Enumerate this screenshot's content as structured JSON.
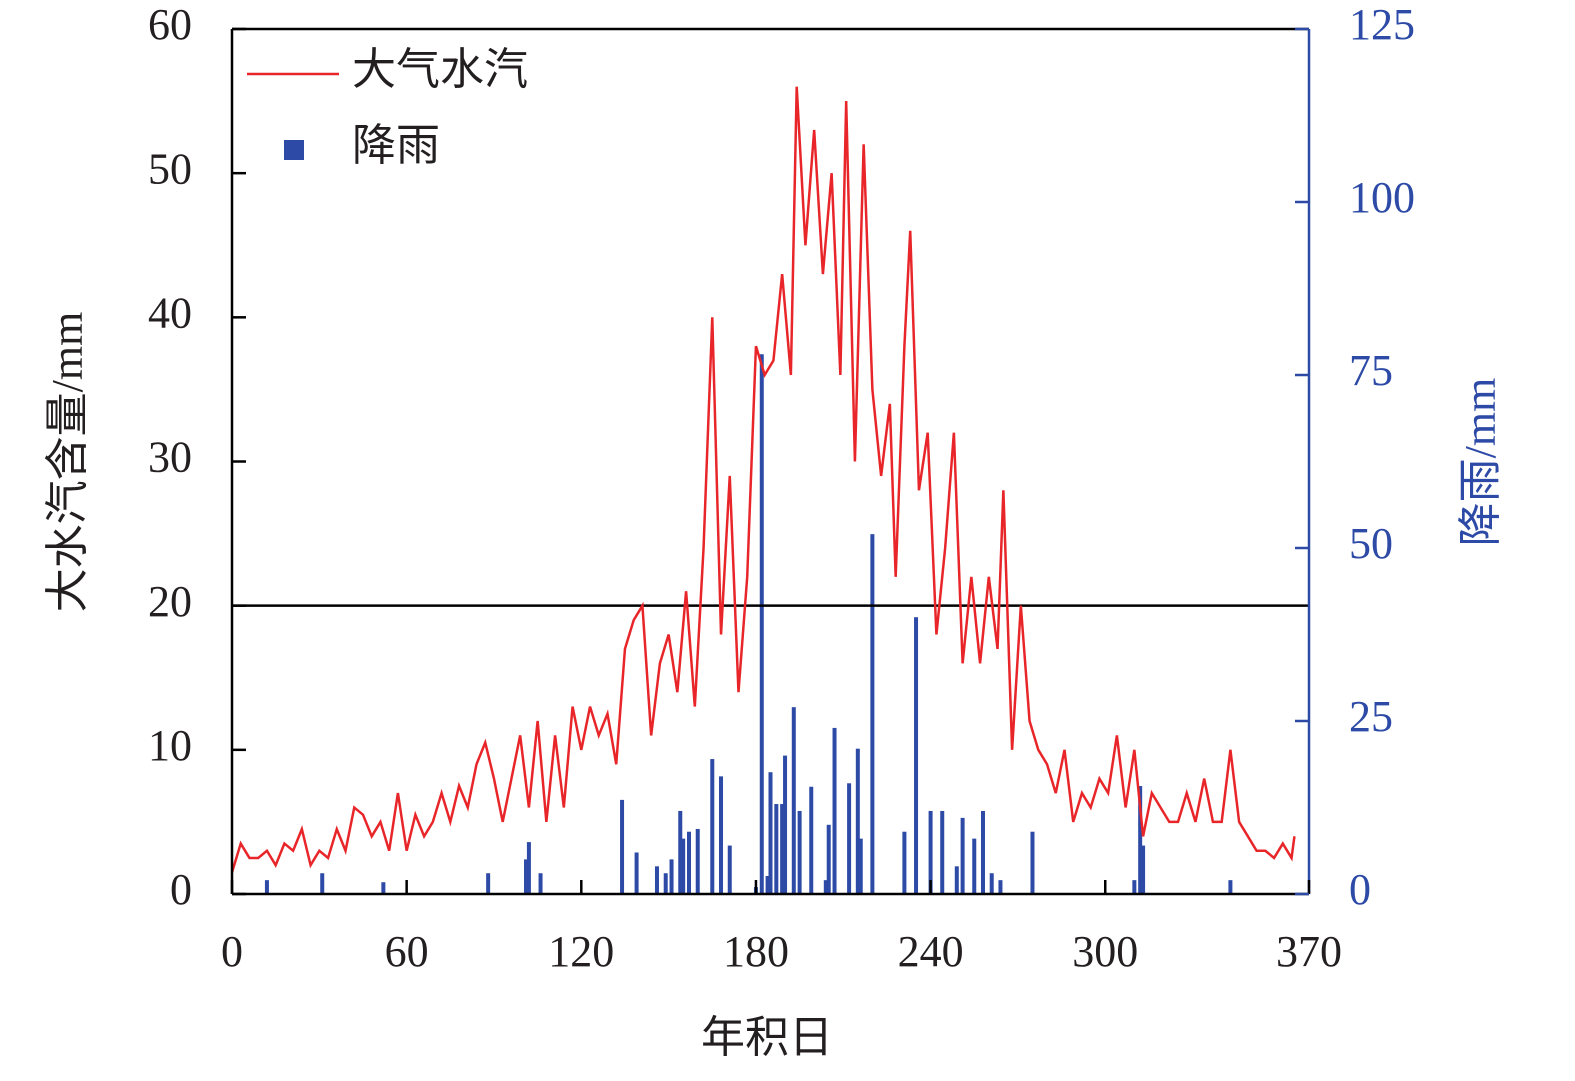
{
  "chart_data": {
    "type": "line_bar",
    "xlabel": "年积日",
    "ylabel": "大水汽含量/mm",
    "y2label": "降雨/mm",
    "xlim": [
      0,
      370
    ],
    "xticks": [
      0,
      60,
      120,
      180,
      240,
      300,
      370
    ],
    "ylim": [
      0,
      60
    ],
    "yticks": [
      0,
      10,
      20,
      30,
      40,
      50,
      60
    ],
    "y2lim": [
      0,
      125
    ],
    "y2ticks": [
      0,
      25,
      50,
      75,
      100,
      125
    ],
    "hline": 20,
    "legend": "upper left",
    "series": [
      {
        "name": "大气水汽",
        "type": "line",
        "color": "#e8262a",
        "x": [
          0,
          3,
          6,
          9,
          12,
          15,
          18,
          21,
          24,
          27,
          30,
          33,
          36,
          39,
          42,
          45,
          48,
          51,
          54,
          57,
          60,
          63,
          66,
          69,
          72,
          75,
          78,
          81,
          84,
          87,
          90,
          93,
          96,
          99,
          102,
          105,
          108,
          111,
          114,
          117,
          120,
          123,
          126,
          129,
          132,
          135,
          138,
          141,
          144,
          147,
          150,
          153,
          156,
          159,
          162,
          165,
          168,
          171,
          174,
          177,
          180,
          183,
          186,
          189,
          192,
          194,
          197,
          200,
          203,
          206,
          209,
          211,
          214,
          217,
          220,
          223,
          226,
          228,
          231,
          233,
          236,
          239,
          242,
          245,
          248,
          251,
          254,
          257,
          260,
          263,
          265,
          268,
          271,
          274,
          277,
          280,
          283,
          286,
          289,
          292,
          295,
          298,
          301,
          304,
          307,
          310,
          313,
          316,
          319,
          322,
          325,
          328,
          331,
          334,
          337,
          340,
          343,
          346,
          349,
          352,
          355,
          358,
          361,
          364,
          365
        ],
        "values": [
          1.5,
          3.5,
          2.5,
          2.5,
          3,
          2,
          3.5,
          3,
          4.5,
          2,
          3,
          2.5,
          4.5,
          3,
          6,
          5.5,
          4,
          5,
          3,
          7,
          3,
          5.5,
          4,
          5,
          7,
          5,
          7.5,
          6,
          9,
          10.5,
          8,
          5,
          8,
          11,
          6,
          12,
          5,
          11,
          6,
          13,
          10,
          13,
          11,
          12.5,
          9,
          17,
          19,
          20,
          11,
          16,
          18,
          14,
          21,
          13,
          24,
          40,
          18,
          29,
          14,
          22,
          38,
          36,
          37,
          43,
          36,
          56,
          45,
          53,
          43,
          50,
          36,
          55,
          30,
          52,
          35,
          29,
          34,
          22,
          38,
          46,
          28,
          32,
          18,
          24,
          32,
          16,
          22,
          16,
          22,
          17,
          28,
          10,
          20,
          12,
          10,
          9,
          7,
          10,
          5,
          7,
          6,
          8,
          7,
          11,
          6,
          10,
          4,
          7,
          6,
          5,
          5,
          7,
          5,
          8,
          5,
          5,
          10,
          5,
          4,
          3,
          3,
          2.5,
          3.5,
          2.5,
          4
        ]
      },
      {
        "name": "降雨",
        "type": "bar",
        "axis": "y2",
        "color": "#2c4aa6",
        "x": [
          12,
          31,
          52,
          88,
          101,
          102,
          106,
          134,
          139,
          146,
          149,
          151,
          154,
          155,
          157,
          160,
          165,
          168,
          171,
          180,
          182,
          184,
          185,
          187,
          189,
          190,
          193,
          195,
          199,
          204,
          205,
          207,
          212,
          215,
          216,
          220,
          231,
          235,
          240,
          244,
          249,
          251,
          255,
          258,
          261,
          264,
          275,
          310,
          312,
          313,
          343
        ],
        "values": [
          2,
          3,
          1.7,
          3,
          5,
          7.5,
          3,
          13.6,
          6,
          4,
          3,
          5,
          12,
          8,
          9,
          9.4,
          19.5,
          17,
          7,
          1,
          78,
          2.6,
          17.6,
          13,
          13,
          20,
          27,
          12,
          15.5,
          2,
          10,
          24,
          16,
          21,
          8,
          52,
          9,
          40,
          12,
          12,
          4,
          11,
          8,
          12,
          3,
          2,
          9,
          2,
          15.6,
          7,
          2
        ]
      }
    ]
  }
}
